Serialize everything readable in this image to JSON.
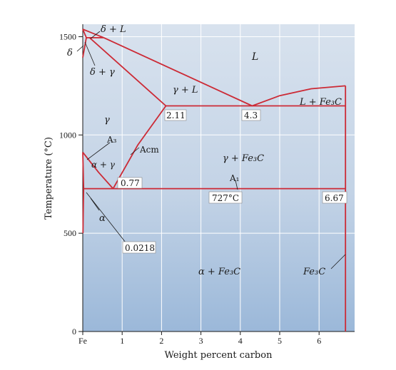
{
  "chart_data": {
    "type": "phase-diagram",
    "xlabel": "Weight percent carbon",
    "ylabel": "Temperature (°C)",
    "x_ticks": [
      "Fe",
      "1",
      "2",
      "3",
      "4",
      "5",
      "6"
    ],
    "y_ticks": [
      "0",
      "500",
      "1000",
      "1500"
    ],
    "xlim": [
      0,
      6.9
    ],
    "ylim": [
      0,
      1600
    ],
    "grid": true,
    "phase_labels": {
      "delta_plus_liquid": "δ + L",
      "delta": "δ",
      "delta_plus_gamma": "δ + γ",
      "liquid": "L",
      "gamma_plus_liquid": "γ + L",
      "liquid_plus_cementite": "L + Fe₃C",
      "gamma": "γ",
      "alpha_plus_gamma": "α + γ",
      "gamma_plus_cementite": "γ + Fe₃C",
      "alpha": "α",
      "alpha_plus_cementite": "α + Fe₃C",
      "cementite": "Fe₃C"
    },
    "line_labels": {
      "a3": "A₃",
      "acm": "Acm",
      "a1": "A₁"
    },
    "point_labels": {
      "max_austenite_carbon": "2.11",
      "eutectic": "4.3",
      "eutectoid": "0.77",
      "eutectoid_temperature": "727°C",
      "cementite_composition": "6.67",
      "max_ferrite_carbon": "0.0218"
    },
    "boundaries": [
      {
        "name": "liquidus-delta",
        "points": [
          [
            0,
            1538
          ],
          [
            0.53,
            1495
          ]
        ]
      },
      {
        "name": "liquidus-gamma",
        "points": [
          [
            0.53,
            1495
          ],
          [
            4.3,
            1148
          ]
        ]
      },
      {
        "name": "liquidus-cementite",
        "points": [
          [
            4.3,
            1148
          ],
          [
            5.0,
            1200
          ],
          [
            5.8,
            1235
          ],
          [
            6.67,
            1250
          ]
        ]
      },
      {
        "name": "peritectic",
        "points": [
          [
            0.09,
            1495
          ],
          [
            0.53,
            1495
          ]
        ]
      },
      {
        "name": "solidus-delta",
        "points": [
          [
            0,
            1538
          ],
          [
            0.09,
            1495
          ]
        ]
      },
      {
        "name": "delta-solvus",
        "points": [
          [
            0,
            1394
          ],
          [
            0.09,
            1495
          ]
        ]
      },
      {
        "name": "solidus-gamma",
        "points": [
          [
            0.17,
            1495
          ],
          [
            2.11,
            1148
          ]
        ]
      },
      {
        "name": "eutectic",
        "points": [
          [
            2.11,
            1148
          ],
          [
            6.67,
            1148
          ]
        ]
      },
      {
        "name": "acm",
        "points": [
          [
            0.77,
            727
          ],
          [
            1.4,
            950
          ],
          [
            2.11,
            1148
          ]
        ]
      },
      {
        "name": "a3",
        "points": [
          [
            0,
            912
          ],
          [
            0.4,
            810
          ],
          [
            0.77,
            727
          ]
        ]
      },
      {
        "name": "alpha-gamma-lower",
        "points": [
          [
            0,
            912
          ],
          [
            0.0218,
            727
          ]
        ]
      },
      {
        "name": "eutectoid",
        "points": [
          [
            0.0218,
            727
          ],
          [
            6.67,
            727
          ]
        ]
      },
      {
        "name": "alpha-solvus",
        "points": [
          [
            0.0218,
            727
          ],
          [
            0.01,
            600
          ],
          [
            0.005,
            500
          ]
        ]
      },
      {
        "name": "cementite-line",
        "points": [
          [
            6.67,
            0
          ],
          [
            6.67,
            1250
          ]
        ]
      }
    ]
  }
}
